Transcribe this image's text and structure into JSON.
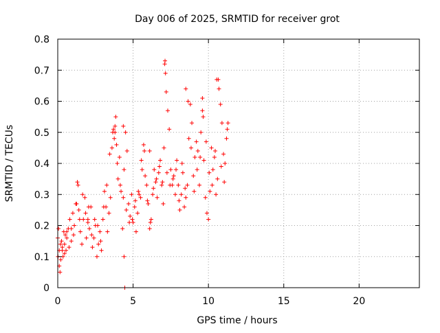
{
  "chart_data": {
    "type": "scatter",
    "title": "Day 006 of 2025, SRMTID for receiver grot",
    "xlabel": "GPS time / hours",
    "ylabel": "SRMTID / TECUs",
    "xlim": [
      0,
      24
    ],
    "ylim": [
      0,
      0.8
    ],
    "xticks": [
      0,
      5,
      10,
      15,
      20
    ],
    "yticks": [
      0,
      0.1,
      0.2,
      0.3,
      0.4,
      0.5,
      0.6,
      0.7,
      0.8
    ],
    "xtick_labels": [
      "0",
      "5",
      "10",
      "15",
      "20"
    ],
    "ytick_labels": [
      "0",
      "0.1",
      "0.2",
      "0.3",
      "0.4",
      "0.5",
      "0.6",
      "0.7",
      "0.8"
    ],
    "grid": true,
    "marker": "+",
    "color": "#ff0000",
    "series": [
      {
        "name": "SRMTID",
        "x": [
          0.0,
          0.05,
          0.1,
          0.15,
          0.2,
          0.25,
          0.3,
          0.35,
          0.4,
          0.45,
          0.5,
          0.55,
          0.6,
          0.7,
          0.8,
          0.9,
          1.0,
          1.1,
          1.2,
          1.3,
          1.35,
          1.4,
          1.5,
          1.6,
          1.7,
          1.8,
          1.9,
          2.0,
          2.1,
          2.2,
          2.3,
          2.4,
          2.5,
          2.6,
          2.7,
          2.8,
          2.9,
          3.0,
          3.1,
          3.2,
          3.3,
          3.4,
          3.5,
          3.6,
          3.7,
          3.8,
          3.85,
          3.9,
          4.0,
          4.1,
          4.2,
          4.3,
          4.4,
          4.5,
          4.6,
          4.7,
          4.8,
          4.9,
          5.0,
          5.1,
          5.2,
          5.3,
          5.4,
          5.5,
          5.6,
          5.7,
          5.8,
          5.9,
          6.0,
          6.1,
          6.2,
          6.3,
          6.4,
          6.5,
          6.6,
          6.7,
          6.8,
          6.9,
          7.0,
          7.05,
          7.1,
          7.15,
          7.2,
          7.3,
          7.4,
          7.5,
          7.6,
          7.7,
          7.8,
          7.9,
          8.0,
          8.1,
          8.2,
          8.3,
          8.4,
          8.5,
          8.6,
          8.7,
          8.8,
          8.9,
          9.0,
          9.1,
          9.2,
          9.3,
          9.4,
          9.5,
          9.6,
          9.7,
          9.8,
          9.9,
          10.0,
          10.1,
          10.2,
          10.3,
          10.4,
          10.5,
          10.6,
          10.7,
          10.8,
          10.9,
          11.0,
          11.1,
          11.2,
          11.3,
          0.02,
          0.1,
          0.18,
          0.3,
          0.45,
          0.6,
          0.75,
          0.9,
          1.05,
          1.25,
          1.45,
          1.65,
          1.85,
          2.05,
          2.25,
          2.45,
          2.65,
          2.85,
          3.05,
          3.25,
          3.45,
          3.65,
          3.75,
          3.95,
          4.15,
          4.35,
          4.55,
          4.75,
          4.95,
          5.15,
          5.35,
          5.55,
          5.75,
          5.95,
          6.15,
          6.35,
          6.55,
          6.75,
          6.95,
          7.25,
          7.45,
          7.65,
          7.85,
          8.05,
          8.25,
          8.45,
          8.65,
          8.85,
          9.05,
          9.25,
          9.45,
          9.65,
          9.85,
          10.05,
          10.25,
          10.45,
          10.65,
          10.85,
          11.05,
          11.25,
          4.4,
          4.45,
          4.35,
          7.12,
          8.5,
          10.55,
          3.8,
          9.6,
          6.1,
          2.0
        ],
        "y": [
          0.16,
          0.19,
          0.12,
          0.05,
          0.09,
          0.15,
          0.13,
          0.1,
          0.18,
          0.14,
          0.17,
          0.12,
          0.16,
          0.19,
          0.22,
          0.15,
          0.24,
          0.2,
          0.27,
          0.34,
          0.33,
          0.25,
          0.18,
          0.14,
          0.22,
          0.29,
          0.16,
          0.21,
          0.19,
          0.26,
          0.13,
          0.16,
          0.2,
          0.1,
          0.14,
          0.18,
          0.12,
          0.22,
          0.31,
          0.26,
          0.18,
          0.24,
          0.29,
          0.45,
          0.51,
          0.5,
          0.55,
          0.46,
          0.35,
          0.42,
          0.31,
          0.19,
          0.38,
          0.5,
          0.44,
          0.27,
          0.23,
          0.3,
          0.21,
          0.26,
          0.18,
          0.24,
          0.3,
          0.29,
          0.38,
          0.46,
          0.36,
          0.33,
          0.27,
          0.19,
          0.22,
          0.3,
          0.38,
          0.34,
          0.29,
          0.37,
          0.41,
          0.33,
          0.27,
          0.45,
          0.72,
          0.69,
          0.63,
          0.57,
          0.51,
          0.38,
          0.33,
          0.36,
          0.3,
          0.41,
          0.33,
          0.25,
          0.3,
          0.37,
          0.26,
          0.29,
          0.33,
          0.48,
          0.59,
          0.53,
          0.36,
          0.42,
          0.47,
          0.44,
          0.33,
          0.5,
          0.57,
          0.41,
          0.29,
          0.24,
          0.22,
          0.31,
          0.45,
          0.38,
          0.42,
          0.3,
          0.35,
          0.64,
          0.59,
          0.53,
          0.43,
          0.4,
          0.48,
          0.53,
          0.1,
          0.07,
          0.14,
          0.12,
          0.11,
          0.18,
          0.13,
          0.19,
          0.17,
          0.27,
          0.22,
          0.3,
          0.24,
          0.26,
          0.17,
          0.22,
          0.2,
          0.15,
          0.26,
          0.33,
          0.43,
          0.5,
          0.48,
          0.4,
          0.33,
          0.29,
          0.25,
          0.21,
          0.22,
          0.28,
          0.31,
          0.41,
          0.44,
          0.28,
          0.21,
          0.32,
          0.35,
          0.39,
          0.34,
          0.37,
          0.33,
          0.35,
          0.38,
          0.28,
          0.4,
          0.32,
          0.6,
          0.45,
          0.31,
          0.38,
          0.42,
          0.55,
          0.47,
          0.37,
          0.33,
          0.44,
          0.67,
          0.39,
          0.34,
          0.51,
          0.1,
          0.0,
          0.52,
          0.73,
          0.64,
          0.67,
          0.52,
          0.61,
          0.44,
          0.22
        ]
      }
    ]
  }
}
